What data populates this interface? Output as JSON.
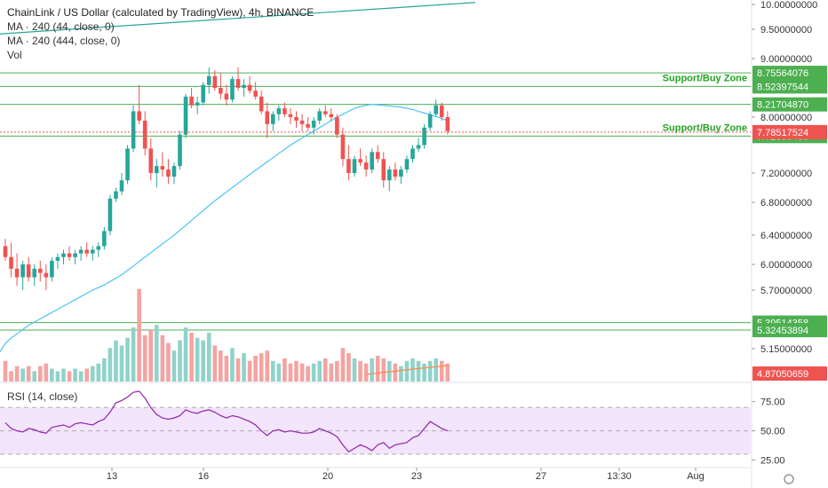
{
  "legend": {
    "title": "ChainLink / US Dollar (calculated by TradingView), 4h, BINANCE",
    "ma1": "MA · 240 (44, close, 0)",
    "ma2": "MA · 240 (444, close, 0)",
    "vol": "Vol"
  },
  "rsi_label": "RSI (14, close)",
  "colors": {
    "up": "#26a69a",
    "down": "#ef5350",
    "ma44": "#4fc3f7",
    "ma444": "#26a69a",
    "support_line": "#4caf50",
    "support_text": "#22a322",
    "price_tag": "#ef5350",
    "rsi_line": "#8e24aa",
    "rsi_band": "#f3e5fb"
  },
  "chart_data": {
    "type": "candlestick",
    "x_ticks": [
      "13",
      "16",
      "20",
      "23",
      "27",
      "13:30",
      "Aug"
    ],
    "y_ticks": [
      "10.00000000",
      "9.50000000",
      "9.00000000",
      "8.00000000",
      "7.20000000",
      "6.80000000",
      "6.40000000",
      "6.00000000",
      "5.70000000",
      "5.15000000"
    ],
    "ylim": [
      4.8,
      10.05
    ],
    "horizontal_levels": [
      {
        "value": 8.75564076,
        "label": "8.75564076"
      },
      {
        "value": 8.52397544,
        "label": "8.52397544",
        "annotation": "Support/Buy Zone"
      },
      {
        "value": 8.2170487,
        "label": "8.21704870"
      },
      {
        "value": 7.7289643,
        "label": "7.72896430",
        "annotation": "Support/Buy Zone"
      },
      {
        "value": 5.39514358,
        "label": "5.39514358"
      },
      {
        "value": 5.32453894,
        "label": "5.32453894"
      }
    ],
    "current_price": {
      "value": 7.78517524,
      "label": "7.78517524"
    },
    "last_volume_label": "4.87050659",
    "candles": [
      [
        6.25,
        6.35,
        6.05,
        6.1
      ],
      [
        6.1,
        6.3,
        5.85,
        5.95
      ],
      [
        5.95,
        6.15,
        5.75,
        5.85
      ],
      [
        5.85,
        6.05,
        5.7,
        6.0
      ],
      [
        6.0,
        6.1,
        5.8,
        5.85
      ],
      [
        5.85,
        6.0,
        5.75,
        5.95
      ],
      [
        5.95,
        6.05,
        5.8,
        5.9
      ],
      [
        5.9,
        6.0,
        5.7,
        5.85
      ],
      [
        5.85,
        6.1,
        5.8,
        6.05
      ],
      [
        6.05,
        6.15,
        5.95,
        6.1
      ],
      [
        6.1,
        6.2,
        6.0,
        6.15
      ],
      [
        6.15,
        6.25,
        6.05,
        6.1
      ],
      [
        6.1,
        6.2,
        6.0,
        6.15
      ],
      [
        6.15,
        6.25,
        6.05,
        6.2
      ],
      [
        6.2,
        6.3,
        6.1,
        6.15
      ],
      [
        6.15,
        6.25,
        6.05,
        6.2
      ],
      [
        6.2,
        6.3,
        6.1,
        6.25
      ],
      [
        6.25,
        6.5,
        6.2,
        6.45
      ],
      [
        6.45,
        6.9,
        6.4,
        6.85
      ],
      [
        6.85,
        7.0,
        6.8,
        6.95
      ],
      [
        6.95,
        7.2,
        6.9,
        7.1
      ],
      [
        7.1,
        7.6,
        7.05,
        7.55
      ],
      [
        7.55,
        8.2,
        7.5,
        8.1
      ],
      [
        8.1,
        8.55,
        7.9,
        7.95
      ],
      [
        7.95,
        8.1,
        7.45,
        7.55
      ],
      [
        7.55,
        7.7,
        7.1,
        7.2
      ],
      [
        7.2,
        7.4,
        7.0,
        7.3
      ],
      [
        7.3,
        7.5,
        7.15,
        7.25
      ],
      [
        7.25,
        7.4,
        7.05,
        7.15
      ],
      [
        7.15,
        7.35,
        7.05,
        7.3
      ],
      [
        7.3,
        7.8,
        7.25,
        7.75
      ],
      [
        7.75,
        8.4,
        7.7,
        8.35
      ],
      [
        8.35,
        8.5,
        8.15,
        8.2
      ],
      [
        8.2,
        8.35,
        8.05,
        8.25
      ],
      [
        8.25,
        8.6,
        8.2,
        8.55
      ],
      [
        8.55,
        8.85,
        8.4,
        8.7
      ],
      [
        8.7,
        8.8,
        8.45,
        8.5
      ],
      [
        8.5,
        8.75,
        8.3,
        8.4
      ],
      [
        8.4,
        8.55,
        8.2,
        8.3
      ],
      [
        8.3,
        8.7,
        8.25,
        8.65
      ],
      [
        8.65,
        8.85,
        8.45,
        8.5
      ],
      [
        8.5,
        8.65,
        8.35,
        8.55
      ],
      [
        8.55,
        8.7,
        8.4,
        8.45
      ],
      [
        8.45,
        8.6,
        8.3,
        8.35
      ],
      [
        8.35,
        8.45,
        8.05,
        8.1
      ],
      [
        8.1,
        8.25,
        7.7,
        7.9
      ],
      [
        7.9,
        8.1,
        7.8,
        8.05
      ],
      [
        8.05,
        8.2,
        7.95,
        8.15
      ],
      [
        8.15,
        8.25,
        8.0,
        8.05
      ],
      [
        8.05,
        8.15,
        7.9,
        8.0
      ],
      [
        8.0,
        8.1,
        7.85,
        7.95
      ],
      [
        7.95,
        8.05,
        7.8,
        7.9
      ],
      [
        7.9,
        8.0,
        7.8,
        7.85
      ],
      [
        7.85,
        8.0,
        7.75,
        7.95
      ],
      [
        7.95,
        8.15,
        7.9,
        8.1
      ],
      [
        8.1,
        8.2,
        8.0,
        8.05
      ],
      [
        8.05,
        8.15,
        7.95,
        8.0
      ],
      [
        8.0,
        8.05,
        7.7,
        7.75
      ],
      [
        7.75,
        7.85,
        7.3,
        7.4
      ],
      [
        7.4,
        7.6,
        7.1,
        7.2
      ],
      [
        7.2,
        7.45,
        7.15,
        7.4
      ],
      [
        7.4,
        7.55,
        7.3,
        7.35
      ],
      [
        7.35,
        7.45,
        7.15,
        7.25
      ],
      [
        7.25,
        7.55,
        7.2,
        7.5
      ],
      [
        7.5,
        7.6,
        7.35,
        7.4
      ],
      [
        7.4,
        7.5,
        7.0,
        7.1
      ],
      [
        7.1,
        7.3,
        6.95,
        7.25
      ],
      [
        7.25,
        7.35,
        7.1,
        7.15
      ],
      [
        7.15,
        7.3,
        7.05,
        7.25
      ],
      [
        7.25,
        7.45,
        7.2,
        7.4
      ],
      [
        7.4,
        7.6,
        7.35,
        7.55
      ],
      [
        7.55,
        7.7,
        7.5,
        7.6
      ],
      [
        7.6,
        7.9,
        7.55,
        7.85
      ],
      [
        7.85,
        8.1,
        7.8,
        8.05
      ],
      [
        8.05,
        8.3,
        8.0,
        8.2
      ],
      [
        8.2,
        8.25,
        7.95,
        8.0
      ],
      [
        8.0,
        8.1,
        7.75,
        7.8
      ]
    ],
    "volumes": [
      0.8,
      0.4,
      0.6,
      0.5,
      0.6,
      0.4,
      0.6,
      0.7,
      0.5,
      0.4,
      0.5,
      0.4,
      0.5,
      0.4,
      0.5,
      0.6,
      0.7,
      0.9,
      1.3,
      1.6,
      1.4,
      1.7,
      2.1,
      3.6,
      1.8,
      2.0,
      2.2,
      1.8,
      1.5,
      1.2,
      1.6,
      2.1,
      1.9,
      1.7,
      1.6,
      1.9,
      1.4,
      1.2,
      1.0,
      1.3,
      0.9,
      1.1,
      0.8,
      1.0,
      1.1,
      1.2,
      0.8,
      0.7,
      0.9,
      0.7,
      0.8,
      0.7,
      0.6,
      0.7,
      0.8,
      0.9,
      0.7,
      0.8,
      1.3,
      1.1,
      0.9,
      0.8,
      0.7,
      0.9,
      1.0,
      0.9,
      0.8,
      0.7,
      0.6,
      0.8,
      0.9,
      0.8,
      0.7,
      0.8,
      0.9,
      0.8,
      0.7
    ],
    "ma44": [
      5.2,
      5.25,
      5.29,
      5.33,
      5.37,
      5.4,
      5.43,
      5.46,
      5.49,
      5.52,
      5.55,
      5.58,
      5.61,
      5.64,
      5.67,
      5.7,
      5.73,
      5.76,
      5.8,
      5.84,
      5.88,
      5.93,
      5.98,
      6.04,
      6.1,
      6.16,
      6.22,
      6.28,
      6.34,
      6.4,
      6.46,
      6.52,
      6.58,
      6.64,
      6.7,
      6.76,
      6.82,
      6.88,
      6.94,
      7.0,
      7.06,
      7.12,
      7.18,
      7.24,
      7.3,
      7.36,
      7.42,
      7.48,
      7.54,
      7.6,
      7.65,
      7.7,
      7.75,
      7.8,
      7.85,
      7.9,
      7.95,
      8.0,
      8.05,
      8.1,
      8.15,
      8.18,
      8.2,
      8.22,
      8.21,
      8.2,
      8.19,
      8.18,
      8.17,
      8.15,
      8.13,
      8.1,
      8.07,
      8.04,
      8.01,
      7.98,
      7.95
    ],
    "rsi": [
      57,
      52,
      50,
      49,
      52,
      51,
      49,
      48,
      53,
      54,
      55,
      53,
      56,
      57,
      56,
      55,
      58,
      60,
      66,
      74,
      76,
      79,
      83,
      84,
      78,
      70,
      64,
      61,
      60,
      61,
      63,
      68,
      66,
      65,
      67,
      68,
      66,
      63,
      61,
      63,
      62,
      60,
      58,
      55,
      50,
      46,
      50,
      51,
      49,
      50,
      49,
      48,
      48,
      49,
      52,
      50,
      48,
      45,
      38,
      32,
      35,
      38,
      36,
      33,
      38,
      40,
      35,
      38,
      39,
      40,
      44,
      46,
      52,
      58,
      55,
      52,
      50
    ],
    "rsi_levels": [
      70,
      50,
      30
    ],
    "rsi_ticks": [
      "75.00",
      "50.00",
      "25.00"
    ],
    "rsi_ylim": [
      20,
      90
    ]
  }
}
